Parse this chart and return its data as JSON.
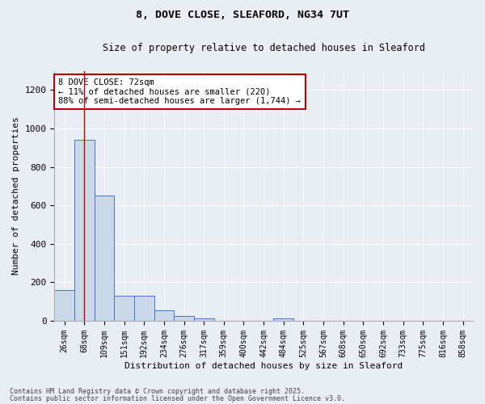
{
  "title1": "8, DOVE CLOSE, SLEAFORD, NG34 7UT",
  "title2": "Size of property relative to detached houses in Sleaford",
  "xlabel": "Distribution of detached houses by size in Sleaford",
  "ylabel": "Number of detached properties",
  "bin_labels": [
    "26sqm",
    "68sqm",
    "109sqm",
    "151sqm",
    "192sqm",
    "234sqm",
    "276sqm",
    "317sqm",
    "359sqm",
    "400sqm",
    "442sqm",
    "484sqm",
    "525sqm",
    "567sqm",
    "608sqm",
    "650sqm",
    "692sqm",
    "733sqm",
    "775sqm",
    "816sqm",
    "858sqm"
  ],
  "bar_values": [
    160,
    940,
    650,
    130,
    130,
    55,
    25,
    12,
    0,
    0,
    0,
    12,
    0,
    0,
    0,
    0,
    0,
    0,
    0,
    0,
    0
  ],
  "bar_color": "#c9d9e8",
  "bar_edge_color": "#4472c4",
  "vline_x": 1,
  "vline_color": "#c00000",
  "annotation_line1": "8 DOVE CLOSE: 72sqm",
  "annotation_line2": "← 11% of detached houses are smaller (220)",
  "annotation_line3": "88% of semi-detached houses are larger (1,744) →",
  "annotation_box_color": "#ffffff",
  "annotation_box_edge": "#c00000",
  "ylim": [
    0,
    1300
  ],
  "yticks": [
    0,
    200,
    400,
    600,
    800,
    1000,
    1200
  ],
  "footer1": "Contains HM Land Registry data © Crown copyright and database right 2025.",
  "footer2": "Contains public sector information licensed under the Open Government Licence v3.0.",
  "bg_color": "#e8eef4"
}
